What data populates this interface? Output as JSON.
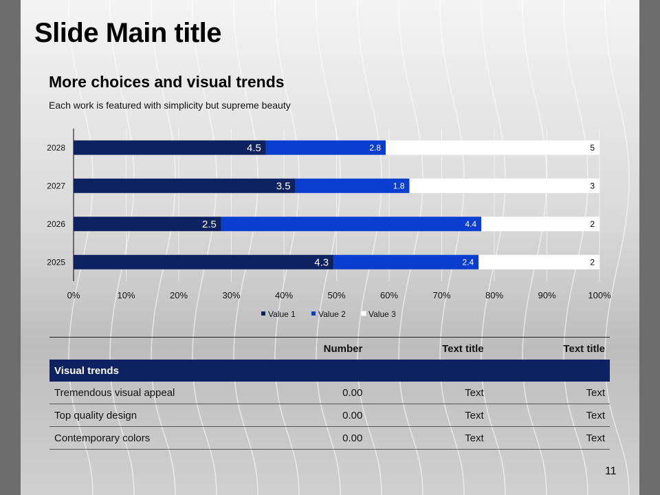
{
  "slide": {
    "title": "Slide Main title",
    "subtitle": "More choices and visual trends",
    "description": "Each work is featured with simplicity but supreme beauty",
    "page_number": "11"
  },
  "chart_data": {
    "type": "bar",
    "orientation": "horizontal",
    "stacking": "percent",
    "categories": [
      "2025",
      "2026",
      "2027",
      "2028"
    ],
    "series": [
      {
        "name": "Value  1",
        "values": [
          4.3,
          2.5,
          3.5,
          4.5
        ],
        "color": "#0e2160"
      },
      {
        "name": "Value  2",
        "values": [
          2.4,
          4.4,
          1.8,
          2.8
        ],
        "color": "#0a3ed1"
      },
      {
        "name": "Value  3",
        "values": [
          2,
          2,
          3,
          5
        ],
        "color": "#ffffff"
      }
    ],
    "x_ticks": [
      "0%",
      "10%",
      "20%",
      "30%",
      "40%",
      "50%",
      "60%",
      "70%",
      "80%",
      "90%",
      "100%"
    ],
    "xlim": [
      0,
      100
    ],
    "grid": "vertical",
    "legend": "bottom"
  },
  "table": {
    "headers": [
      "",
      "Number",
      "Text title",
      "Text title"
    ],
    "group": "Visual trends",
    "rows": [
      [
        "Tremendous visual appeal",
        "0.00",
        "Text",
        "Text"
      ],
      [
        "Top quality design",
        "0.00",
        "Text",
        "Text"
      ],
      [
        "Contemporary colors",
        "0.00",
        "Text",
        "Text"
      ]
    ]
  }
}
